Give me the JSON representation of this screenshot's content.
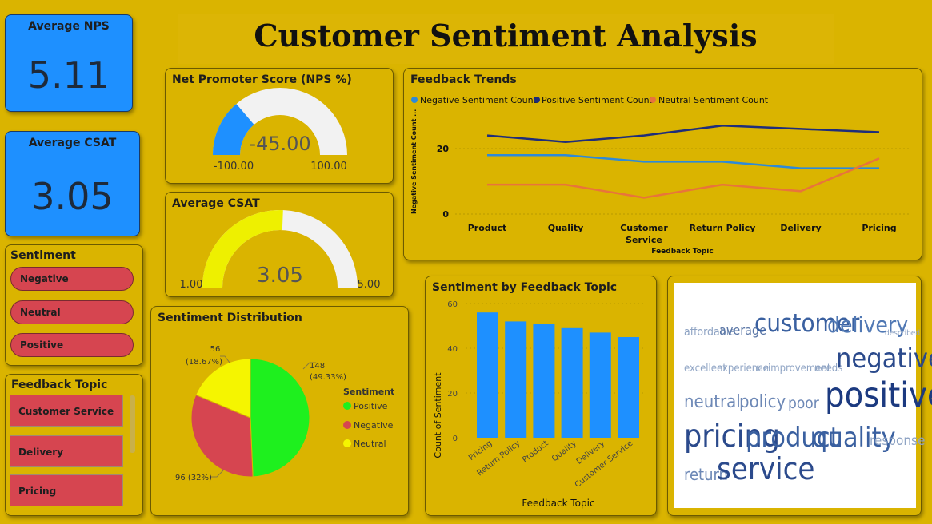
{
  "title": "Customer Sentiment Analysis",
  "kpi_nps": {
    "label": "Average NPS",
    "value": "5.11"
  },
  "kpi_csat": {
    "label": "Average CSAT",
    "value": "3.05"
  },
  "nps_gauge": {
    "title": "Net Promoter Score (NPS %)",
    "value": "-45.00",
    "min": "-100.00",
    "max": "100.00",
    "fraction": 0.275,
    "fill_color": "#1e90ff"
  },
  "csat_gauge": {
    "title": "Average CSAT",
    "value": "3.05",
    "min": "1.00",
    "max": "5.00",
    "fraction": 0.5125,
    "fill_color": "#eef000"
  },
  "sentiment_slicer": {
    "title": "Sentiment",
    "items": [
      "Negative",
      "Neutral",
      "Positive"
    ]
  },
  "topic_slicer": {
    "title": "Feedback Topic",
    "items": [
      "Customer Service",
      "Delivery",
      "Pricing"
    ]
  },
  "trends": {
    "title": "Feedback Trends",
    "legend": [
      "Negative Sentiment Count",
      "Positive Sentiment Count",
      "Neutral Sentiment Count"
    ],
    "ylabel": "Negative Sentiment Count ...",
    "xlabel": "Feedback Topic",
    "yticks": [
      "20",
      "0"
    ]
  },
  "distribution": {
    "title": "Sentiment Distribution",
    "legend_title": "Sentiment",
    "legend": [
      "Positive",
      "Negative",
      "Neutral"
    ],
    "label_positive_1": "148",
    "label_positive_2": "(49.33%)",
    "label_neutral_1": "56",
    "label_neutral_2": "(18.67%)",
    "label_negative": "96 (32%)"
  },
  "topic_bars": {
    "title": "Sentiment by Feedback Topic",
    "ylabel": "Count of Sentiment",
    "xlabel": "Feedback Topic",
    "yticks": [
      "60",
      "40",
      "20",
      "0"
    ]
  },
  "wordcloud": {
    "words": [
      "affordable",
      "average",
      "customer",
      "delivery",
      "described",
      "excellent",
      "experience",
      "fast",
      "improvement",
      "needs",
      "negative",
      "neutral",
      "policy",
      "poor",
      "positive",
      "pricing",
      "product",
      "quality",
      "response",
      "return",
      "service"
    ]
  },
  "chart_data": [
    {
      "type": "line",
      "x": [
        "Product",
        "Quality",
        "Customer Service",
        "Return Policy",
        "Delivery",
        "Pricing"
      ],
      "ylim": [
        0,
        30
      ],
      "grid": true,
      "legend_position": "top-left",
      "series": [
        {
          "name": "Negative Sentiment Count",
          "color": "#2e8ad8",
          "values": [
            18,
            18,
            16,
            16,
            14,
            14
          ]
        },
        {
          "name": "Positive Sentiment Count",
          "color": "#1f2d7a",
          "values": [
            24,
            22,
            24,
            27,
            26,
            25
          ]
        },
        {
          "name": "Neutral Sentiment Count",
          "color": "#e8743b",
          "values": [
            9,
            9,
            5,
            9,
            7,
            17
          ]
        }
      ]
    },
    {
      "type": "pie",
      "categories": [
        "Positive",
        "Negative",
        "Neutral"
      ],
      "values": [
        148,
        96,
        56
      ],
      "colors": [
        "#1ef01e",
        "#d64550",
        "#f5f500"
      ],
      "legend_position": "right"
    },
    {
      "type": "bar",
      "categories": [
        "Pricing",
        "Return Policy",
        "Product",
        "Quality",
        "Delivery",
        "Customer Service"
      ],
      "values": [
        56,
        52,
        51,
        49,
        47,
        45
      ],
      "ylim": [
        0,
        60
      ],
      "color": "#1e90ff",
      "grid": true
    }
  ]
}
